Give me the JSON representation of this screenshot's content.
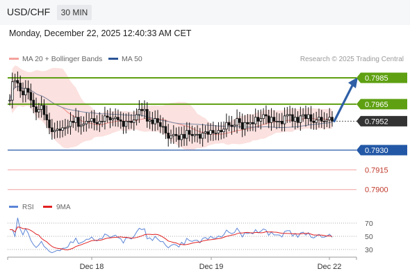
{
  "header": {
    "pair": "USD/CHF",
    "timeframe": "30 MIN"
  },
  "datetime": "Monday, December 22, 2025 12:40:33 AM CET",
  "legend": {
    "bb_label": "MA 20 + Bollinger Bands",
    "ma50_label": "MA 50",
    "credit": "Research © 2025 Trading Central"
  },
  "rsi_legend": {
    "rsi_label": "RSI",
    "ma9_label": "9MA"
  },
  "colors": {
    "resistance": "#5ea012",
    "support": "#2358a6",
    "minor": "#f2a0a0",
    "price_tag": "#333333",
    "arrow": "#2e5fa6",
    "rsi": "#5b85d6",
    "rsi_ma": "#e02020",
    "bb_fill": "#fbe1df",
    "ma20": "#f08c86",
    "ma50": "#7b8ca8",
    "candle": "#111111"
  },
  "chart_data": [
    {
      "type": "candlestick",
      "title": "USD/CHF",
      "timeframe": "30 MIN",
      "x_tick_labels": [
        "Dec 18",
        "Dec 19",
        "Dec 22"
      ],
      "price_range": [
        0.7895,
        0.7995
      ],
      "last_price": 0.7952,
      "levels": [
        {
          "value": 0.7985,
          "label": "0.7985",
          "kind": "resistance"
        },
        {
          "value": 0.7965,
          "label": "0.7965",
          "kind": "resistance"
        },
        {
          "value": 0.7952,
          "label": "0.7952",
          "kind": "current"
        },
        {
          "value": 0.793,
          "label": "0.7930",
          "kind": "support"
        },
        {
          "value": 0.7915,
          "label": "0.7915",
          "kind": "minor-support"
        },
        {
          "value": 0.79,
          "label": "0.7900",
          "kind": "minor-support"
        }
      ],
      "forecast_target": 0.7985,
      "close_series": [
        0.7968,
        0.7982,
        0.7983,
        0.7981,
        0.7975,
        0.7972,
        0.7977,
        0.7974,
        0.7968,
        0.7963,
        0.7959,
        0.7961,
        0.7964,
        0.7957,
        0.7953,
        0.7947,
        0.7944,
        0.7945,
        0.7946,
        0.7945,
        0.7947,
        0.7947,
        0.7948,
        0.7952,
        0.7951,
        0.7955,
        0.7948,
        0.7949,
        0.795,
        0.7952,
        0.7952,
        0.7954,
        0.7951,
        0.795,
        0.7952,
        0.7952,
        0.7956,
        0.7955,
        0.7953,
        0.7954,
        0.7955,
        0.7953,
        0.7952,
        0.7948,
        0.7952,
        0.7952,
        0.7951,
        0.7953,
        0.7957,
        0.7961,
        0.796,
        0.7961,
        0.7952,
        0.7953,
        0.795,
        0.7954,
        0.7951,
        0.7948,
        0.7948,
        0.7943,
        0.7939,
        0.7941,
        0.7942,
        0.7941,
        0.7938,
        0.7942,
        0.7939,
        0.7945,
        0.7942,
        0.7941,
        0.7942,
        0.7942,
        0.7939,
        0.7943,
        0.7944,
        0.7942,
        0.7945,
        0.7943,
        0.7943,
        0.7945,
        0.7944,
        0.7946,
        0.7951,
        0.7949,
        0.7948,
        0.7949,
        0.7954,
        0.7951,
        0.7946,
        0.7951,
        0.795,
        0.7951,
        0.795,
        0.7955,
        0.7952,
        0.7954,
        0.7957,
        0.7956,
        0.7951,
        0.7955,
        0.7952,
        0.7952,
        0.7952,
        0.795,
        0.7956,
        0.7957,
        0.7957,
        0.7952,
        0.7955,
        0.7951,
        0.7956,
        0.7957,
        0.7954,
        0.7957,
        0.7952,
        0.7951,
        0.7953,
        0.7955,
        0.7952,
        0.7952,
        0.7953,
        0.7955,
        0.7952
      ],
      "rsi_scale": [
        30,
        50,
        70
      ]
    }
  ]
}
